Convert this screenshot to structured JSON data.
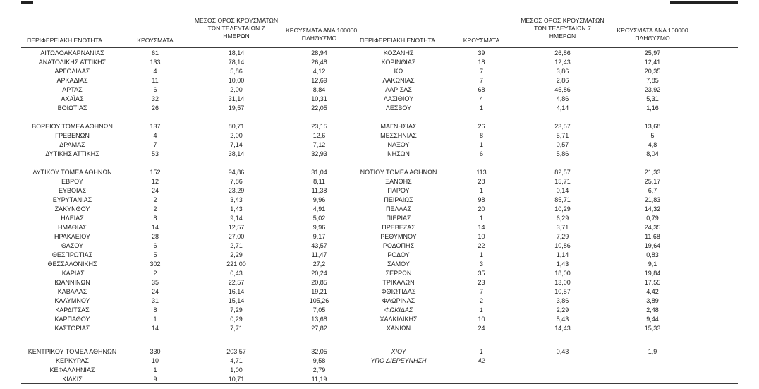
{
  "colors": {
    "text": "#1f1f1f",
    "rule": "#3c3c3c"
  },
  "table": {
    "headers": {
      "region": "ΠΕΡΙΦΕΡΕΙΑΚΗ ΕΝΟΤΗΤΑ",
      "cases": "ΚΡΟΥΣΜΑΤΑ",
      "avg7_lines": [
        "ΜΕΣΟΣ ΟΡΟΣ ΚΡΟΥΣΜΑΤΩΝ",
        "ΤΩΝ ΤΕΛΕΥΤΑΙΩΝ 7",
        "ΗΜΕΡΩΝ"
      ],
      "per100k_lines": [
        "ΚΡΟΥΣΜΑΤΑ ΑΝΑ 100000",
        "ΠΛΗΘΥΣΜΟ"
      ]
    },
    "rows": [
      {
        "left": {
          "name": "ΑΙΤΩΛΟΑΚΑΡΝΑΝΙΑΣ",
          "cases": "61",
          "avg": "18,14",
          "per100k": "28,94"
        },
        "right": {
          "name": "ΚΟΖΑΝΗΣ",
          "cases": "39",
          "avg": "26,86",
          "per100k": "25,97"
        }
      },
      {
        "left": {
          "name": "ΑΝΑΤΟΛΙΚΗΣ ΑΤΤΙΚΗΣ",
          "cases": "133",
          "avg": "78,14",
          "per100k": "26,48"
        },
        "right": {
          "name": "ΚΟΡΙΝΘΙΑΣ",
          "cases": "18",
          "avg": "12,43",
          "per100k": "12,41"
        }
      },
      {
        "left": {
          "name": "ΑΡΓΟΛΙΔΑΣ",
          "cases": "4",
          "avg": "5,86",
          "per100k": "4,12"
        },
        "right": {
          "name": "ΚΩ",
          "cases": "7",
          "avg": "3,86",
          "per100k": "20,35"
        }
      },
      {
        "left": {
          "name": "ΑΡΚΑΔΙΑΣ",
          "cases": "11",
          "avg": "10,00",
          "per100k": "12,69"
        },
        "right": {
          "name": "ΛΑΚΩΝΙΑΣ",
          "cases": "7",
          "avg": "2,86",
          "per100k": "7,85"
        }
      },
      {
        "left": {
          "name": "ΑΡΤΑΣ",
          "cases": "6",
          "avg": "2,00",
          "per100k": "8,84"
        },
        "right": {
          "name": "ΛΑΡΙΣΑΣ",
          "cases": "68",
          "avg": "45,86",
          "per100k": "23,92"
        }
      },
      {
        "left": {
          "name": "ΑΧΑΪΑΣ",
          "cases": "32",
          "avg": "31,14",
          "per100k": "10,31"
        },
        "right": {
          "name": "ΛΑΣΙΘΙΟΥ",
          "cases": "4",
          "avg": "4,86",
          "per100k": "5,31"
        }
      },
      {
        "left": {
          "name": "ΒΟΙΩΤΙΑΣ",
          "cases": "26",
          "avg": "19,57",
          "per100k": "22,05"
        },
        "right": {
          "name": "ΛΕΣΒΟΥ",
          "cases": "1",
          "avg": "4,14",
          "per100k": "1,16"
        }
      },
      {
        "spacer": "normal"
      },
      {
        "left": {
          "name": "ΒΟΡΕΙΟΥ ΤΟΜΕΑ ΑΘΗΝΩΝ",
          "cases": "137",
          "avg": "80,71",
          "per100k": "23,15"
        },
        "right": {
          "name": "ΜΑΓΝΗΣΙΑΣ",
          "cases": "26",
          "avg": "23,57",
          "per100k": "13,68"
        }
      },
      {
        "left": {
          "name": "ΓΡΕΒΕΝΩΝ",
          "cases": "4",
          "avg": "2,00",
          "per100k": "12,6"
        },
        "right": {
          "name": "ΜΕΣΣΗΝΙΑΣ",
          "cases": "8",
          "avg": "5,71",
          "per100k": "5"
        }
      },
      {
        "left": {
          "name": "ΔΡΑΜΑΣ",
          "cases": "7",
          "avg": "7,14",
          "per100k": "7,12"
        },
        "right": {
          "name": "ΝΑΞΟΥ",
          "cases": "1",
          "avg": "0,57",
          "per100k": "4,8"
        }
      },
      {
        "left": {
          "name": "ΔΥΤΙΚΗΣ ΑΤΤΙΚΗΣ",
          "cases": "53",
          "avg": "38,14",
          "per100k": "32,93"
        },
        "right": {
          "name": "ΝΗΣΩΝ",
          "cases": "6",
          "avg": "5,86",
          "per100k": "8,04"
        }
      },
      {
        "spacer": "normal"
      },
      {
        "left": {
          "name": "ΔΥΤΙΚΟΥ ΤΟΜΕΑ ΑΘΗΝΩΝ",
          "cases": "152",
          "avg": "94,86",
          "per100k": "31,04"
        },
        "right": {
          "name": "ΝΟΤΙΟΥ ΤΟΜΕΑ ΑΘΗΝΩΝ",
          "cases": "113",
          "avg": "82,57",
          "per100k": "21,33"
        }
      },
      {
        "left": {
          "name": "ΕΒΡΟΥ",
          "cases": "12",
          "avg": "7,86",
          "per100k": "8,11"
        },
        "right": {
          "name": "ΞΑΝΘΗΣ",
          "cases": "28",
          "avg": "15,71",
          "per100k": "25,17"
        }
      },
      {
        "left": {
          "name": "ΕΥΒΟΙΑΣ",
          "cases": "24",
          "avg": "23,29",
          "per100k": "11,38"
        },
        "right": {
          "name": "ΠΑΡΟΥ",
          "cases": "1",
          "avg": "0,14",
          "per100k": "6,7"
        }
      },
      {
        "left": {
          "name": "ΕΥΡΥΤΑΝΙΑΣ",
          "cases": "2",
          "avg": "3,43",
          "per100k": "9,96"
        },
        "right": {
          "name": "ΠΕΙΡΑΙΩΣ",
          "cases": "98",
          "avg": "85,71",
          "per100k": "21,83"
        }
      },
      {
        "left": {
          "name": "ΖΑΚΥΝΘΟΥ",
          "cases": "2",
          "avg": "1,43",
          "per100k": "4,91"
        },
        "right": {
          "name": "ΠΕΛΛΑΣ",
          "cases": "20",
          "avg": "10,29",
          "per100k": "14,32"
        }
      },
      {
        "left": {
          "name": "ΗΛΕΙΑΣ",
          "cases": "8",
          "avg": "9,14",
          "per100k": "5,02"
        },
        "right": {
          "name": "ΠΙΕΡΙΑΣ",
          "cases": "1",
          "avg": "6,29",
          "per100k": "0,79"
        }
      },
      {
        "left": {
          "name": "ΗΜΑΘΙΑΣ",
          "cases": "14",
          "avg": "12,57",
          "per100k": "9,96"
        },
        "right": {
          "name": "ΠΡΕΒΕΖΑΣ",
          "cases": "14",
          "avg": "3,71",
          "per100k": "24,35"
        }
      },
      {
        "left": {
          "name": "ΗΡΑΚΛΕΙΟΥ",
          "cases": "28",
          "avg": "27,00",
          "per100k": "9,17"
        },
        "right": {
          "name": "ΡΕΘΥΜΝΟΥ",
          "cases": "10",
          "avg": "7,29",
          "per100k": "11,68"
        }
      },
      {
        "left": {
          "name": "ΘΑΣΟΥ",
          "cases": "6",
          "avg": "2,71",
          "per100k": "43,57"
        },
        "right": {
          "name": "ΡΟΔΟΠΗΣ",
          "cases": "22",
          "avg": "10,86",
          "per100k": "19,64"
        }
      },
      {
        "left": {
          "name": "ΘΕΣΠΡΩΤΙΑΣ",
          "cases": "5",
          "avg": "2,29",
          "per100k": "11,47"
        },
        "right": {
          "name": "ΡΟΔΟΥ",
          "cases": "1",
          "avg": "1,14",
          "per100k": "0,83"
        }
      },
      {
        "left": {
          "name": "ΘΕΣΣΑΛΟΝΙΚΗΣ",
          "cases": "302",
          "avg": "221,00",
          "per100k": "27,2"
        },
        "right": {
          "name": "ΣΑΜΟΥ",
          "cases": "3",
          "avg": "1,43",
          "per100k": "9,1"
        }
      },
      {
        "left": {
          "name": "ΙΚΑΡΙΑΣ",
          "cases": "2",
          "avg": "0,43",
          "per100k": "20,24"
        },
        "right": {
          "name": "ΣΕΡΡΩΝ",
          "cases": "35",
          "avg": "18,00",
          "per100k": "19,84"
        }
      },
      {
        "left": {
          "name": "ΙΩΑΝΝΙΝΩΝ",
          "cases": "35",
          "avg": "22,57",
          "per100k": "20,85"
        },
        "right": {
          "name": "ΤΡΙΚΑΛΩΝ",
          "cases": "23",
          "avg": "13,00",
          "per100k": "17,55"
        }
      },
      {
        "left": {
          "name": "ΚΑΒΑΛΑΣ",
          "cases": "24",
          "avg": "16,14",
          "per100k": "19,21"
        },
        "right": {
          "name": "ΦΘΙΩΤΙΔΑΣ",
          "cases": "7",
          "avg": "10,57",
          "per100k": "4,42"
        }
      },
      {
        "left": {
          "name": "ΚΑΛΥΜΝΟΥ",
          "cases": "31",
          "avg": "15,14",
          "per100k": "105,26"
        },
        "right": {
          "name": "ΦΛΩΡΙΝΑΣ",
          "cases": "2",
          "avg": "3,86",
          "per100k": "3,89"
        }
      },
      {
        "left": {
          "name": "ΚΑΡΔΙΤΣΑΣ",
          "cases": "8",
          "avg": "7,29",
          "per100k": "7,05"
        },
        "right": {
          "name": "ΦΩΚΙΔΑΣ",
          "cases": "1",
          "avg": "2,29",
          "per100k": "2,48",
          "italic": true
        }
      },
      {
        "left": {
          "name": "ΚΑΡΠΑΘΟΥ",
          "cases": "1",
          "avg": "0,29",
          "per100k": "13,68"
        },
        "right": {
          "name": "ΧΑΛΚΙΔΙΚΗΣ",
          "cases": "10",
          "avg": "5,43",
          "per100k": "9,44"
        }
      },
      {
        "left": {
          "name": "ΚΑΣΤΟΡΙΑΣ",
          "cases": "14",
          "avg": "7,71",
          "per100k": "27,82"
        },
        "right": {
          "name": "ΧΑΝΙΩΝ",
          "cases": "24",
          "avg": "14,43",
          "per100k": "15,33"
        }
      },
      {
        "spacer": "large"
      },
      {
        "left": {
          "name": "ΚΕΝΤΡΙΚΟΥ ΤΟΜΕΑ ΑΘΗΝΩΝ",
          "cases": "330",
          "avg": "203,57",
          "per100k": "32,05"
        },
        "right": {
          "name": "ΧΙΟΥ",
          "cases": "1",
          "avg": "0,43",
          "per100k": "1,9",
          "italic": true
        }
      },
      {
        "left": {
          "name": "ΚΕΡΚΥΡΑΣ",
          "cases": "10",
          "avg": "4,71",
          "per100k": "9,58"
        },
        "right": {
          "name": "ΥΠΟ ΔΙΕΡΕΥΝΗΣΗ",
          "cases": "42",
          "avg": "",
          "per100k": "",
          "italic": true
        }
      },
      {
        "left": {
          "name": "ΚΕΦΑΛΛΗΝΙΑΣ",
          "cases": "1",
          "avg": "1,00",
          "per100k": "2,79"
        }
      },
      {
        "left": {
          "name": "ΚΙΛΚΙΣ",
          "cases": "9",
          "avg": "10,71",
          "per100k": "11,19"
        }
      }
    ]
  }
}
